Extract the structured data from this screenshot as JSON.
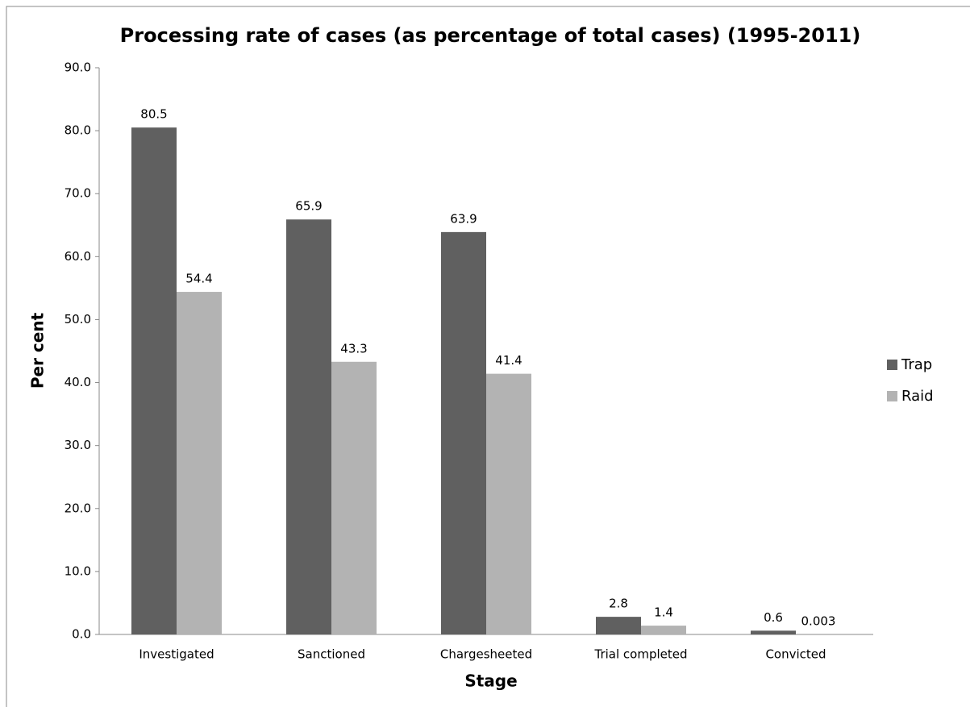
{
  "chart_data": {
    "type": "bar",
    "title": "Processing rate of cases (as percentage of total cases) (1995-2011)",
    "x_label": "Stage",
    "y_label": "Per cent",
    "categories": [
      "Investigated",
      "Sanctioned",
      "Chargesheeted",
      "Trial completed",
      "Convicted"
    ],
    "series": [
      {
        "name": "Trap",
        "color": "#606060",
        "values": [
          80.5,
          65.9,
          63.9,
          2.8,
          0.6
        ]
      },
      {
        "name": "Raid",
        "color": "#b3b3b3",
        "values": [
          54.4,
          43.3,
          41.4,
          1.4,
          0.003
        ]
      }
    ],
    "ylim": [
      0,
      90
    ],
    "yticks": [
      {
        "value": 0,
        "label": "0.0"
      },
      {
        "value": 10,
        "label": "10.0"
      },
      {
        "value": 20,
        "label": "20.0"
      },
      {
        "value": 30,
        "label": "30.0"
      },
      {
        "value": 40,
        "label": "40.0"
      },
      {
        "value": 50,
        "label": "50.0"
      },
      {
        "value": 60,
        "label": "60.0"
      },
      {
        "value": 70,
        "label": "70.0"
      },
      {
        "value": 80,
        "label": "80.0"
      },
      {
        "value": 90,
        "label": "90.0"
      }
    ],
    "grid": false,
    "legend": "right"
  }
}
